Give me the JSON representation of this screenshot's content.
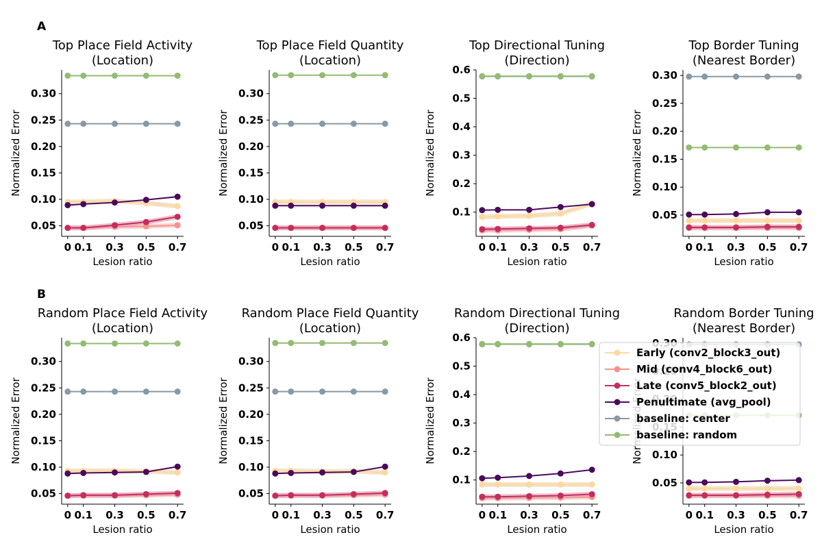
{
  "panel_labels": [
    "A",
    "B"
  ],
  "legend": {
    "entries": [
      {
        "label": "Early (conv2_block3_out)",
        "color": "#fdd9a0"
      },
      {
        "label": "Mid (conv4_block6_out)",
        "color": "#f7918c"
      },
      {
        "label": "Late (conv5_block2_out)",
        "color": "#c42d5d"
      },
      {
        "label": "Penultimate (avg_pool)",
        "color": "#4a0a5c"
      },
      {
        "label": "baseline: center",
        "color": "#8899a6"
      },
      {
        "label": "baseline: random",
        "color": "#93bb72"
      }
    ]
  },
  "chart_data": [
    {
      "type": "line",
      "title": "Top Place Field Activity\n(Location)",
      "xlabel": "Lesion ratio",
      "ylabel": "Normalized Error",
      "x": [
        0,
        0.1,
        0.3,
        0.5,
        0.7
      ],
      "xticks": [
        "0",
        "0.1",
        "0.3",
        "0.5",
        "0.7"
      ],
      "yticks": [
        "0.05",
        "0.10",
        "0.15",
        "0.20",
        "0.25",
        "0.30"
      ],
      "ylim": [
        0.03,
        0.345
      ],
      "series": [
        {
          "name": "Early (conv2_block3_out)",
          "values": [
            0.095,
            0.095,
            0.097,
            0.093,
            0.087
          ]
        },
        {
          "name": "Mid (conv4_block6_out)",
          "values": [
            0.046,
            0.046,
            0.048,
            0.049,
            0.051
          ]
        },
        {
          "name": "Late (conv5_block2_out)",
          "values": [
            0.046,
            0.046,
            0.051,
            0.057,
            0.067
          ]
        },
        {
          "name": "Penultimate (avg_pool)",
          "values": [
            0.089,
            0.091,
            0.094,
            0.099,
            0.105
          ]
        },
        {
          "name": "baseline: center",
          "values": [
            0.243,
            0.243,
            0.243,
            0.243,
            0.243
          ]
        },
        {
          "name": "baseline: random",
          "values": [
            0.334,
            0.334,
            0.334,
            0.334,
            0.334
          ]
        }
      ]
    },
    {
      "type": "line",
      "title": "Top Place Field Quantity\n(Location)",
      "xlabel": "Lesion ratio",
      "ylabel": "Normalized Error",
      "x": [
        0,
        0.1,
        0.3,
        0.5,
        0.7
      ],
      "xticks": [
        "0",
        "0.1",
        "0.3",
        "0.5",
        "0.7"
      ],
      "yticks": [
        "0.05",
        "0.10",
        "0.15",
        "0.20",
        "0.25",
        "0.30"
      ],
      "ylim": [
        0.03,
        0.345
      ],
      "series": [
        {
          "name": "Early (conv2_block3_out)",
          "values": [
            0.095,
            0.095,
            0.095,
            0.095,
            0.095
          ]
        },
        {
          "name": "Mid (conv4_block6_out)",
          "values": [
            0.046,
            0.046,
            0.046,
            0.046,
            0.046
          ]
        },
        {
          "name": "Late (conv5_block2_out)",
          "values": [
            0.046,
            0.046,
            0.046,
            0.046,
            0.046
          ]
        },
        {
          "name": "Penultimate (avg_pool)",
          "values": [
            0.088,
            0.088,
            0.088,
            0.088,
            0.088
          ]
        },
        {
          "name": "baseline: center",
          "values": [
            0.243,
            0.243,
            0.243,
            0.243,
            0.243
          ]
        },
        {
          "name": "baseline: random",
          "values": [
            0.335,
            0.335,
            0.335,
            0.335,
            0.335
          ]
        }
      ]
    },
    {
      "type": "line",
      "title": "Top Directional Tuning\n(Direction)",
      "xlabel": "Lesion ratio",
      "ylabel": "Normalized Error",
      "x": [
        0,
        0.1,
        0.3,
        0.5,
        0.7
      ],
      "xticks": [
        "0",
        "0.1",
        "0.3",
        "0.5",
        "0.7"
      ],
      "yticks": [
        "0.1",
        "0.2",
        "0.3",
        "0.4",
        "0.5",
        "0.6"
      ],
      "ylim": [
        0.015,
        0.6
      ],
      "series": [
        {
          "name": "Early (conv2_block3_out)",
          "values": [
            0.083,
            0.085,
            0.087,
            0.095,
            0.13
          ]
        },
        {
          "name": "Mid (conv4_block6_out)",
          "values": [
            0.036,
            0.036,
            0.038,
            0.04,
            0.053
          ]
        },
        {
          "name": "Late (conv5_block2_out)",
          "values": [
            0.04,
            0.041,
            0.043,
            0.045,
            0.055
          ]
        },
        {
          "name": "Penultimate (avg_pool)",
          "values": [
            0.107,
            0.108,
            0.108,
            0.118,
            0.128
          ]
        },
        {
          "name": "baseline: center",
          "values": [
            0.577,
            0.577,
            0.577,
            0.577,
            0.577
          ]
        },
        {
          "name": "baseline: random",
          "values": [
            0.578,
            0.578,
            0.578,
            0.578,
            0.578
          ]
        }
      ]
    },
    {
      "type": "line",
      "title": "Top Border Tuning\n(Nearest Border)",
      "xlabel": "Lesion ratio",
      "ylabel": "Normalized Error",
      "x": [
        0,
        0.1,
        0.3,
        0.5,
        0.7
      ],
      "xticks": [
        "0",
        "0.1",
        "0.3",
        "0.5",
        "0.7"
      ],
      "yticks": [
        "0.05",
        "0.10",
        "0.15",
        "0.20",
        "0.25",
        "0.30"
      ],
      "ylim": [
        0.012,
        0.31
      ],
      "series": [
        {
          "name": "Early (conv2_block3_out)",
          "values": [
            0.04,
            0.04,
            0.04,
            0.04,
            0.04
          ]
        },
        {
          "name": "Mid (conv4_block6_out)",
          "values": [
            0.027,
            0.027,
            0.027,
            0.027,
            0.027
          ]
        },
        {
          "name": "Late (conv5_block2_out)",
          "values": [
            0.028,
            0.028,
            0.028,
            0.029,
            0.029
          ]
        },
        {
          "name": "Penultimate (avg_pool)",
          "values": [
            0.051,
            0.051,
            0.052,
            0.055,
            0.055
          ]
        },
        {
          "name": "baseline: center",
          "values": [
            0.298,
            0.298,
            0.298,
            0.298,
            0.298
          ]
        },
        {
          "name": "baseline: random",
          "values": [
            0.171,
            0.171,
            0.171,
            0.171,
            0.171
          ]
        }
      ]
    },
    {
      "type": "line",
      "title": "Random Place Field Activity\n(Location)",
      "xlabel": "Lesion ratio",
      "ylabel": "Normalized Error",
      "x": [
        0,
        0.1,
        0.3,
        0.5,
        0.7
      ],
      "xticks": [
        "0",
        "0.1",
        "0.3",
        "0.5",
        "0.7"
      ],
      "yticks": [
        "0.05",
        "0.10",
        "0.15",
        "0.20",
        "0.25",
        "0.30"
      ],
      "ylim": [
        0.03,
        0.345
      ],
      "series": [
        {
          "name": "Early (conv2_block3_out)",
          "values": [
            0.093,
            0.093,
            0.093,
            0.092,
            0.09
          ]
        },
        {
          "name": "Mid (conv4_block6_out)",
          "values": [
            0.046,
            0.046,
            0.046,
            0.047,
            0.048
          ]
        },
        {
          "name": "Late (conv5_block2_out)",
          "values": [
            0.046,
            0.047,
            0.047,
            0.049,
            0.051
          ]
        },
        {
          "name": "Penultimate (avg_pool)",
          "values": [
            0.088,
            0.089,
            0.09,
            0.091,
            0.101
          ]
        },
        {
          "name": "baseline: center",
          "values": [
            0.243,
            0.243,
            0.243,
            0.243,
            0.243
          ]
        },
        {
          "name": "baseline: random",
          "values": [
            0.334,
            0.334,
            0.334,
            0.334,
            0.334
          ]
        }
      ]
    },
    {
      "type": "line",
      "title": "Random Place Field Quantity\n(Location)",
      "xlabel": "Lesion ratio",
      "ylabel": "Normalized Error",
      "x": [
        0,
        0.1,
        0.3,
        0.5,
        0.7
      ],
      "xticks": [
        "0",
        "0.1",
        "0.3",
        "0.5",
        "0.7"
      ],
      "yticks": [
        "0.05",
        "0.10",
        "0.15",
        "0.20",
        "0.25",
        "0.30"
      ],
      "ylim": [
        0.03,
        0.345
      ],
      "series": [
        {
          "name": "Early (conv2_block3_out)",
          "values": [
            0.093,
            0.093,
            0.092,
            0.092,
            0.09
          ]
        },
        {
          "name": "Mid (conv4_block6_out)",
          "values": [
            0.046,
            0.046,
            0.046,
            0.047,
            0.048
          ]
        },
        {
          "name": "Late (conv5_block2_out)",
          "values": [
            0.046,
            0.047,
            0.047,
            0.049,
            0.051
          ]
        },
        {
          "name": "Penultimate (avg_pool)",
          "values": [
            0.088,
            0.089,
            0.09,
            0.091,
            0.101
          ]
        },
        {
          "name": "baseline: center",
          "values": [
            0.243,
            0.243,
            0.243,
            0.243,
            0.243
          ]
        },
        {
          "name": "baseline: random",
          "values": [
            0.335,
            0.335,
            0.335,
            0.335,
            0.335
          ]
        }
      ]
    },
    {
      "type": "line",
      "title": "Random Directional Tuning\n(Direction)",
      "xlabel": "Lesion ratio",
      "ylabel": "Normalized Error",
      "x": [
        0,
        0.1,
        0.3,
        0.5,
        0.7
      ],
      "xticks": [
        "0",
        "0.1",
        "0.3",
        "0.5",
        "0.7"
      ],
      "yticks": [
        "0.1",
        "0.2",
        "0.3",
        "0.4",
        "0.5",
        "0.6"
      ],
      "ylim": [
        0.015,
        0.6
      ],
      "series": [
        {
          "name": "Early (conv2_block3_out)",
          "values": [
            0.084,
            0.084,
            0.084,
            0.084,
            0.084
          ]
        },
        {
          "name": "Mid (conv4_block6_out)",
          "values": [
            0.036,
            0.036,
            0.037,
            0.038,
            0.04
          ]
        },
        {
          "name": "Late (conv5_block2_out)",
          "values": [
            0.041,
            0.041,
            0.043,
            0.045,
            0.05
          ]
        },
        {
          "name": "Penultimate (avg_pool)",
          "values": [
            0.106,
            0.108,
            0.114,
            0.123,
            0.136
          ]
        },
        {
          "name": "baseline: center",
          "values": [
            0.577,
            0.577,
            0.577,
            0.577,
            0.577
          ]
        },
        {
          "name": "baseline: random",
          "values": [
            0.578,
            0.578,
            0.578,
            0.578,
            0.578
          ]
        }
      ]
    },
    {
      "type": "line",
      "title": "Random Border Tuning\n(Nearest Border)",
      "xlabel": "Lesion ratio",
      "ylabel": "Normalized Error",
      "x": [
        0,
        0.1,
        0.3,
        0.5,
        0.7
      ],
      "xticks": [
        "0",
        "0.1",
        "0.3",
        "0.5",
        "0.7"
      ],
      "yticks": [
        "0.05",
        "0.10",
        "0.15",
        "0.20",
        "0.25",
        "0.30"
      ],
      "ylim": [
        0.012,
        0.31
      ],
      "series": [
        {
          "name": "Early (conv2_block3_out)",
          "values": [
            0.04,
            0.04,
            0.04,
            0.04,
            0.04
          ]
        },
        {
          "name": "Mid (conv4_block6_out)",
          "values": [
            0.027,
            0.027,
            0.027,
            0.027,
            0.027
          ]
        },
        {
          "name": "Late (conv5_block2_out)",
          "values": [
            0.028,
            0.028,
            0.028,
            0.029,
            0.03
          ]
        },
        {
          "name": "Penultimate (avg_pool)",
          "values": [
            0.051,
            0.051,
            0.052,
            0.054,
            0.055
          ]
        },
        {
          "name": "baseline: center",
          "values": [
            0.298,
            0.298,
            0.298,
            0.298,
            0.298
          ]
        },
        {
          "name": "baseline: random",
          "values": [
            0.171,
            0.171,
            0.171,
            0.171,
            0.171
          ]
        }
      ]
    }
  ]
}
